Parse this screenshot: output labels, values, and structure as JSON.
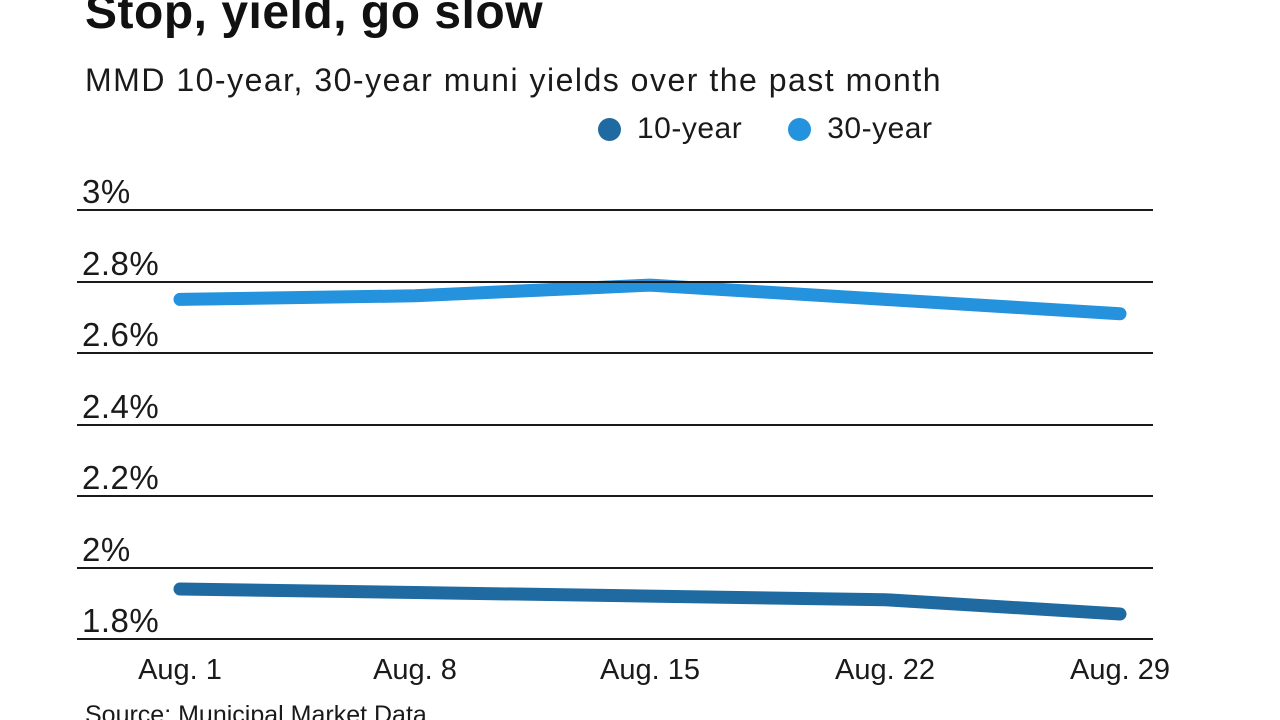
{
  "header": {
    "title": "Stop, yield, go slow",
    "subtitle": "MMD 10-year, 30-year muni yields over the past month"
  },
  "legend": {
    "items": [
      {
        "label": "10-year",
        "color": "#1f6ba1"
      },
      {
        "label": "30-year",
        "color": "#2492dc"
      }
    ]
  },
  "chart_data": {
    "type": "line",
    "title": "Stop, yield, go slow",
    "subtitle": "MMD 10-year, 30-year muni yields over the past month",
    "categories": [
      "Aug. 1",
      "Aug. 8",
      "Aug. 15",
      "Aug. 22",
      "Aug. 29"
    ],
    "series": [
      {
        "name": "10-year",
        "color": "#1f6ba1",
        "values": [
          1.94,
          1.93,
          1.92,
          1.91,
          1.87
        ]
      },
      {
        "name": "30-year",
        "color": "#2492dc",
        "values": [
          2.75,
          2.76,
          2.79,
          2.75,
          2.71
        ]
      }
    ],
    "xlabel": "",
    "ylabel": "",
    "ylim": [
      1.8,
      3.0
    ],
    "yticks": [
      {
        "label": "3%",
        "value": 3.0
      },
      {
        "label": "2.8%",
        "value": 2.8
      },
      {
        "label": "2.6%",
        "value": 2.6
      },
      {
        "label": "2.4%",
        "value": 2.4
      },
      {
        "label": "2.2%",
        "value": 2.2
      },
      {
        "label": "2%",
        "value": 2.0
      },
      {
        "label": "1.8%",
        "value": 1.8
      }
    ],
    "grid": true,
    "legend_position": "top",
    "gridline_color": "#1a1a1a",
    "line_width": 13
  },
  "footer": {
    "source": "Source: Municipal Market Data"
  }
}
